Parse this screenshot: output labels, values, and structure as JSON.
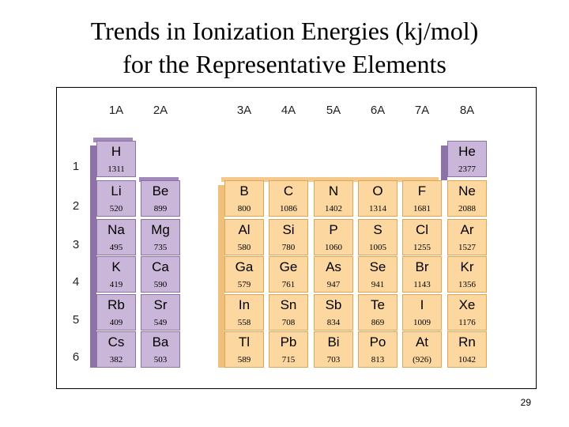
{
  "title": {
    "line1": "Trends in Ionization Energies (kj/mol)",
    "line2": "for the Representative Elements"
  },
  "page_number": "29",
  "colors": {
    "group_1_2": "#c9b6d8",
    "groups_3_8": "#fcd7a0"
  },
  "groups": [
    "1A",
    "2A",
    "3A",
    "4A",
    "5A",
    "6A",
    "7A",
    "8A"
  ],
  "periods": [
    "1",
    "2",
    "3",
    "4",
    "5",
    "6"
  ],
  "elements": [
    {
      "symbol": "H",
      "value": "1311",
      "group": 0,
      "period": 0
    },
    {
      "symbol": "He",
      "value": "2377",
      "group": 7,
      "period": 0
    },
    {
      "symbol": "Li",
      "value": "520",
      "group": 0,
      "period": 1
    },
    {
      "symbol": "Be",
      "value": "899",
      "group": 1,
      "period": 1
    },
    {
      "symbol": "B",
      "value": "800",
      "group": 2,
      "period": 1
    },
    {
      "symbol": "C",
      "value": "1086",
      "group": 3,
      "period": 1
    },
    {
      "symbol": "N",
      "value": "1402",
      "group": 4,
      "period": 1
    },
    {
      "symbol": "O",
      "value": "1314",
      "group": 5,
      "period": 1
    },
    {
      "symbol": "F",
      "value": "1681",
      "group": 6,
      "period": 1
    },
    {
      "symbol": "Ne",
      "value": "2088",
      "group": 7,
      "period": 1
    },
    {
      "symbol": "Na",
      "value": "495",
      "group": 0,
      "period": 2
    },
    {
      "symbol": "Mg",
      "value": "735",
      "group": 1,
      "period": 2
    },
    {
      "symbol": "Al",
      "value": "580",
      "group": 2,
      "period": 2
    },
    {
      "symbol": "Si",
      "value": "780",
      "group": 3,
      "period": 2
    },
    {
      "symbol": "P",
      "value": "1060",
      "group": 4,
      "period": 2
    },
    {
      "symbol": "S",
      "value": "1005",
      "group": 5,
      "period": 2
    },
    {
      "symbol": "Cl",
      "value": "1255",
      "group": 6,
      "period": 2
    },
    {
      "symbol": "Ar",
      "value": "1527",
      "group": 7,
      "period": 2
    },
    {
      "symbol": "K",
      "value": "419",
      "group": 0,
      "period": 3
    },
    {
      "symbol": "Ca",
      "value": "590",
      "group": 1,
      "period": 3
    },
    {
      "symbol": "Ga",
      "value": "579",
      "group": 2,
      "period": 3
    },
    {
      "symbol": "Ge",
      "value": "761",
      "group": 3,
      "period": 3
    },
    {
      "symbol": "As",
      "value": "947",
      "group": 4,
      "period": 3
    },
    {
      "symbol": "Se",
      "value": "941",
      "group": 5,
      "period": 3
    },
    {
      "symbol": "Br",
      "value": "1143",
      "group": 6,
      "period": 3
    },
    {
      "symbol": "Kr",
      "value": "1356",
      "group": 7,
      "period": 3
    },
    {
      "symbol": "Rb",
      "value": "409",
      "group": 0,
      "period": 4
    },
    {
      "symbol": "Sr",
      "value": "549",
      "group": 1,
      "period": 4
    },
    {
      "symbol": "In",
      "value": "558",
      "group": 2,
      "period": 4
    },
    {
      "symbol": "Sn",
      "value": "708",
      "group": 3,
      "period": 4
    },
    {
      "symbol": "Sb",
      "value": "834",
      "group": 4,
      "period": 4
    },
    {
      "symbol": "Te",
      "value": "869",
      "group": 5,
      "period": 4
    },
    {
      "symbol": "I",
      "value": "1009",
      "group": 6,
      "period": 4
    },
    {
      "symbol": "Xe",
      "value": "1176",
      "group": 7,
      "period": 4
    },
    {
      "symbol": "Cs",
      "value": "382",
      "group": 0,
      "period": 5
    },
    {
      "symbol": "Ba",
      "value": "503",
      "group": 1,
      "period": 5
    },
    {
      "symbol": "Tl",
      "value": "589",
      "group": 2,
      "period": 5
    },
    {
      "symbol": "Pb",
      "value": "715",
      "group": 3,
      "period": 5
    },
    {
      "symbol": "Bi",
      "value": "703",
      "group": 4,
      "period": 5
    },
    {
      "symbol": "Po",
      "value": "813",
      "group": 5,
      "period": 5
    },
    {
      "symbol": "At",
      "value": "(926)",
      "group": 6,
      "period": 5
    },
    {
      "symbol": "Rn",
      "value": "1042",
      "group": 7,
      "period": 5
    }
  ]
}
